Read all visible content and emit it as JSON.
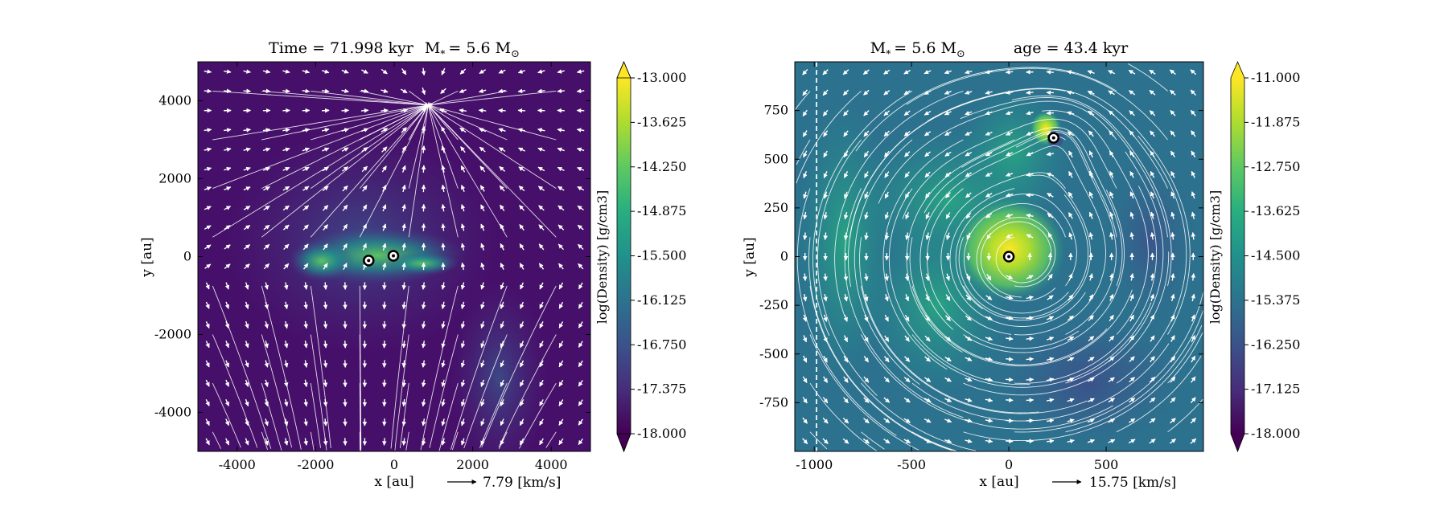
{
  "panels": [
    {
      "title_left": "Time = 71.998 kyr",
      "title_right": "M",
      "title_star_sub": "*",
      "title_mass": "= 5.6 M",
      "title_sun": "⊙",
      "xlabel": "x [au]",
      "ylabel": "y [au]",
      "x_ticks": [
        "-4000",
        "-2000",
        "0",
        "2000",
        "4000"
      ],
      "y_ticks": [
        "4000",
        "2000",
        "0",
        "-2000",
        "-4000"
      ],
      "vel_scale_label": "7.79 [km/s]",
      "colorbar_label": "log(Density) [g/cm3]",
      "colorbar_ticks": [
        "-13.000",
        "-13.625",
        "-14.250",
        "-14.875",
        "-15.500",
        "-16.125",
        "-16.750",
        "-17.375",
        "-18.000"
      ]
    },
    {
      "title_left": "M",
      "title_star_sub": "*",
      "title_mass": "= 5.6 M",
      "title_sun": "⊙",
      "title_right": "age = 43.4 kyr",
      "xlabel": "x [au]",
      "ylabel": "y [au]",
      "x_ticks": [
        "-1000",
        "-500",
        "0",
        "500"
      ],
      "y_ticks": [
        "750",
        "500",
        "250",
        "0",
        "-250",
        "-500",
        "-750"
      ],
      "vel_scale_label": "15.75 [km/s]",
      "colorbar_label": "log(Density) [g/cm3]",
      "colorbar_ticks": [
        "-11.000",
        "-11.875",
        "-12.750",
        "-13.625",
        "-14.500",
        "-15.375",
        "-16.250",
        "-17.125",
        "-18.000"
      ]
    }
  ],
  "chart_data": [
    {
      "type": "heatmap",
      "title": "Time = 71.998 kyr   M* = 5.6 M⊙",
      "xlabel": "x [au]",
      "ylabel": "y [au]",
      "xlim": [
        -5000,
        5000
      ],
      "ylim": [
        -5000,
        5000
      ],
      "x_ticks": [
        -4000,
        -2000,
        0,
        2000,
        4000
      ],
      "y_ticks": [
        -4000,
        -2000,
        0,
        2000,
        4000
      ],
      "colorbar": {
        "label": "log(Density) [g/cm3]",
        "range": [
          -18.0,
          -13.0
        ],
        "colormap": "viridis",
        "ticks": [
          -13.0,
          -13.625,
          -14.25,
          -14.875,
          -15.5,
          -16.125,
          -16.75,
          -17.375,
          -18.0
        ]
      },
      "overlays": [
        "velocity streamlines",
        "velocity arrows"
      ],
      "velocity_scale_kms": 7.79,
      "sinks": [
        {
          "x": -650,
          "y": -100
        },
        {
          "x": -20,
          "y": 20
        }
      ],
      "grid": false
    },
    {
      "type": "heatmap",
      "title": "M* = 5.6 M⊙   age = 43.4 kyr",
      "xlabel": "x [au]",
      "ylabel": "y [au]",
      "xlim": [
        -1100,
        1000
      ],
      "ylim": [
        -1000,
        1000
      ],
      "x_ticks": [
        -1000,
        -500,
        0,
        500
      ],
      "y_ticks": [
        -750,
        -500,
        -250,
        0,
        250,
        500,
        750
      ],
      "colorbar": {
        "label": "log(Density) [g/cm3]",
        "range": [
          -18.0,
          -11.0
        ],
        "colormap": "viridis",
        "ticks": [
          -11.0,
          -11.875,
          -12.75,
          -13.625,
          -14.5,
          -15.375,
          -16.25,
          -17.125,
          -18.0
        ]
      },
      "overlays": [
        "velocity streamlines",
        "velocity arrows"
      ],
      "velocity_scale_kms": 15.75,
      "sinks": [
        {
          "x": 0,
          "y": 0
        },
        {
          "x": 230,
          "y": 610
        }
      ],
      "grid": false
    }
  ]
}
